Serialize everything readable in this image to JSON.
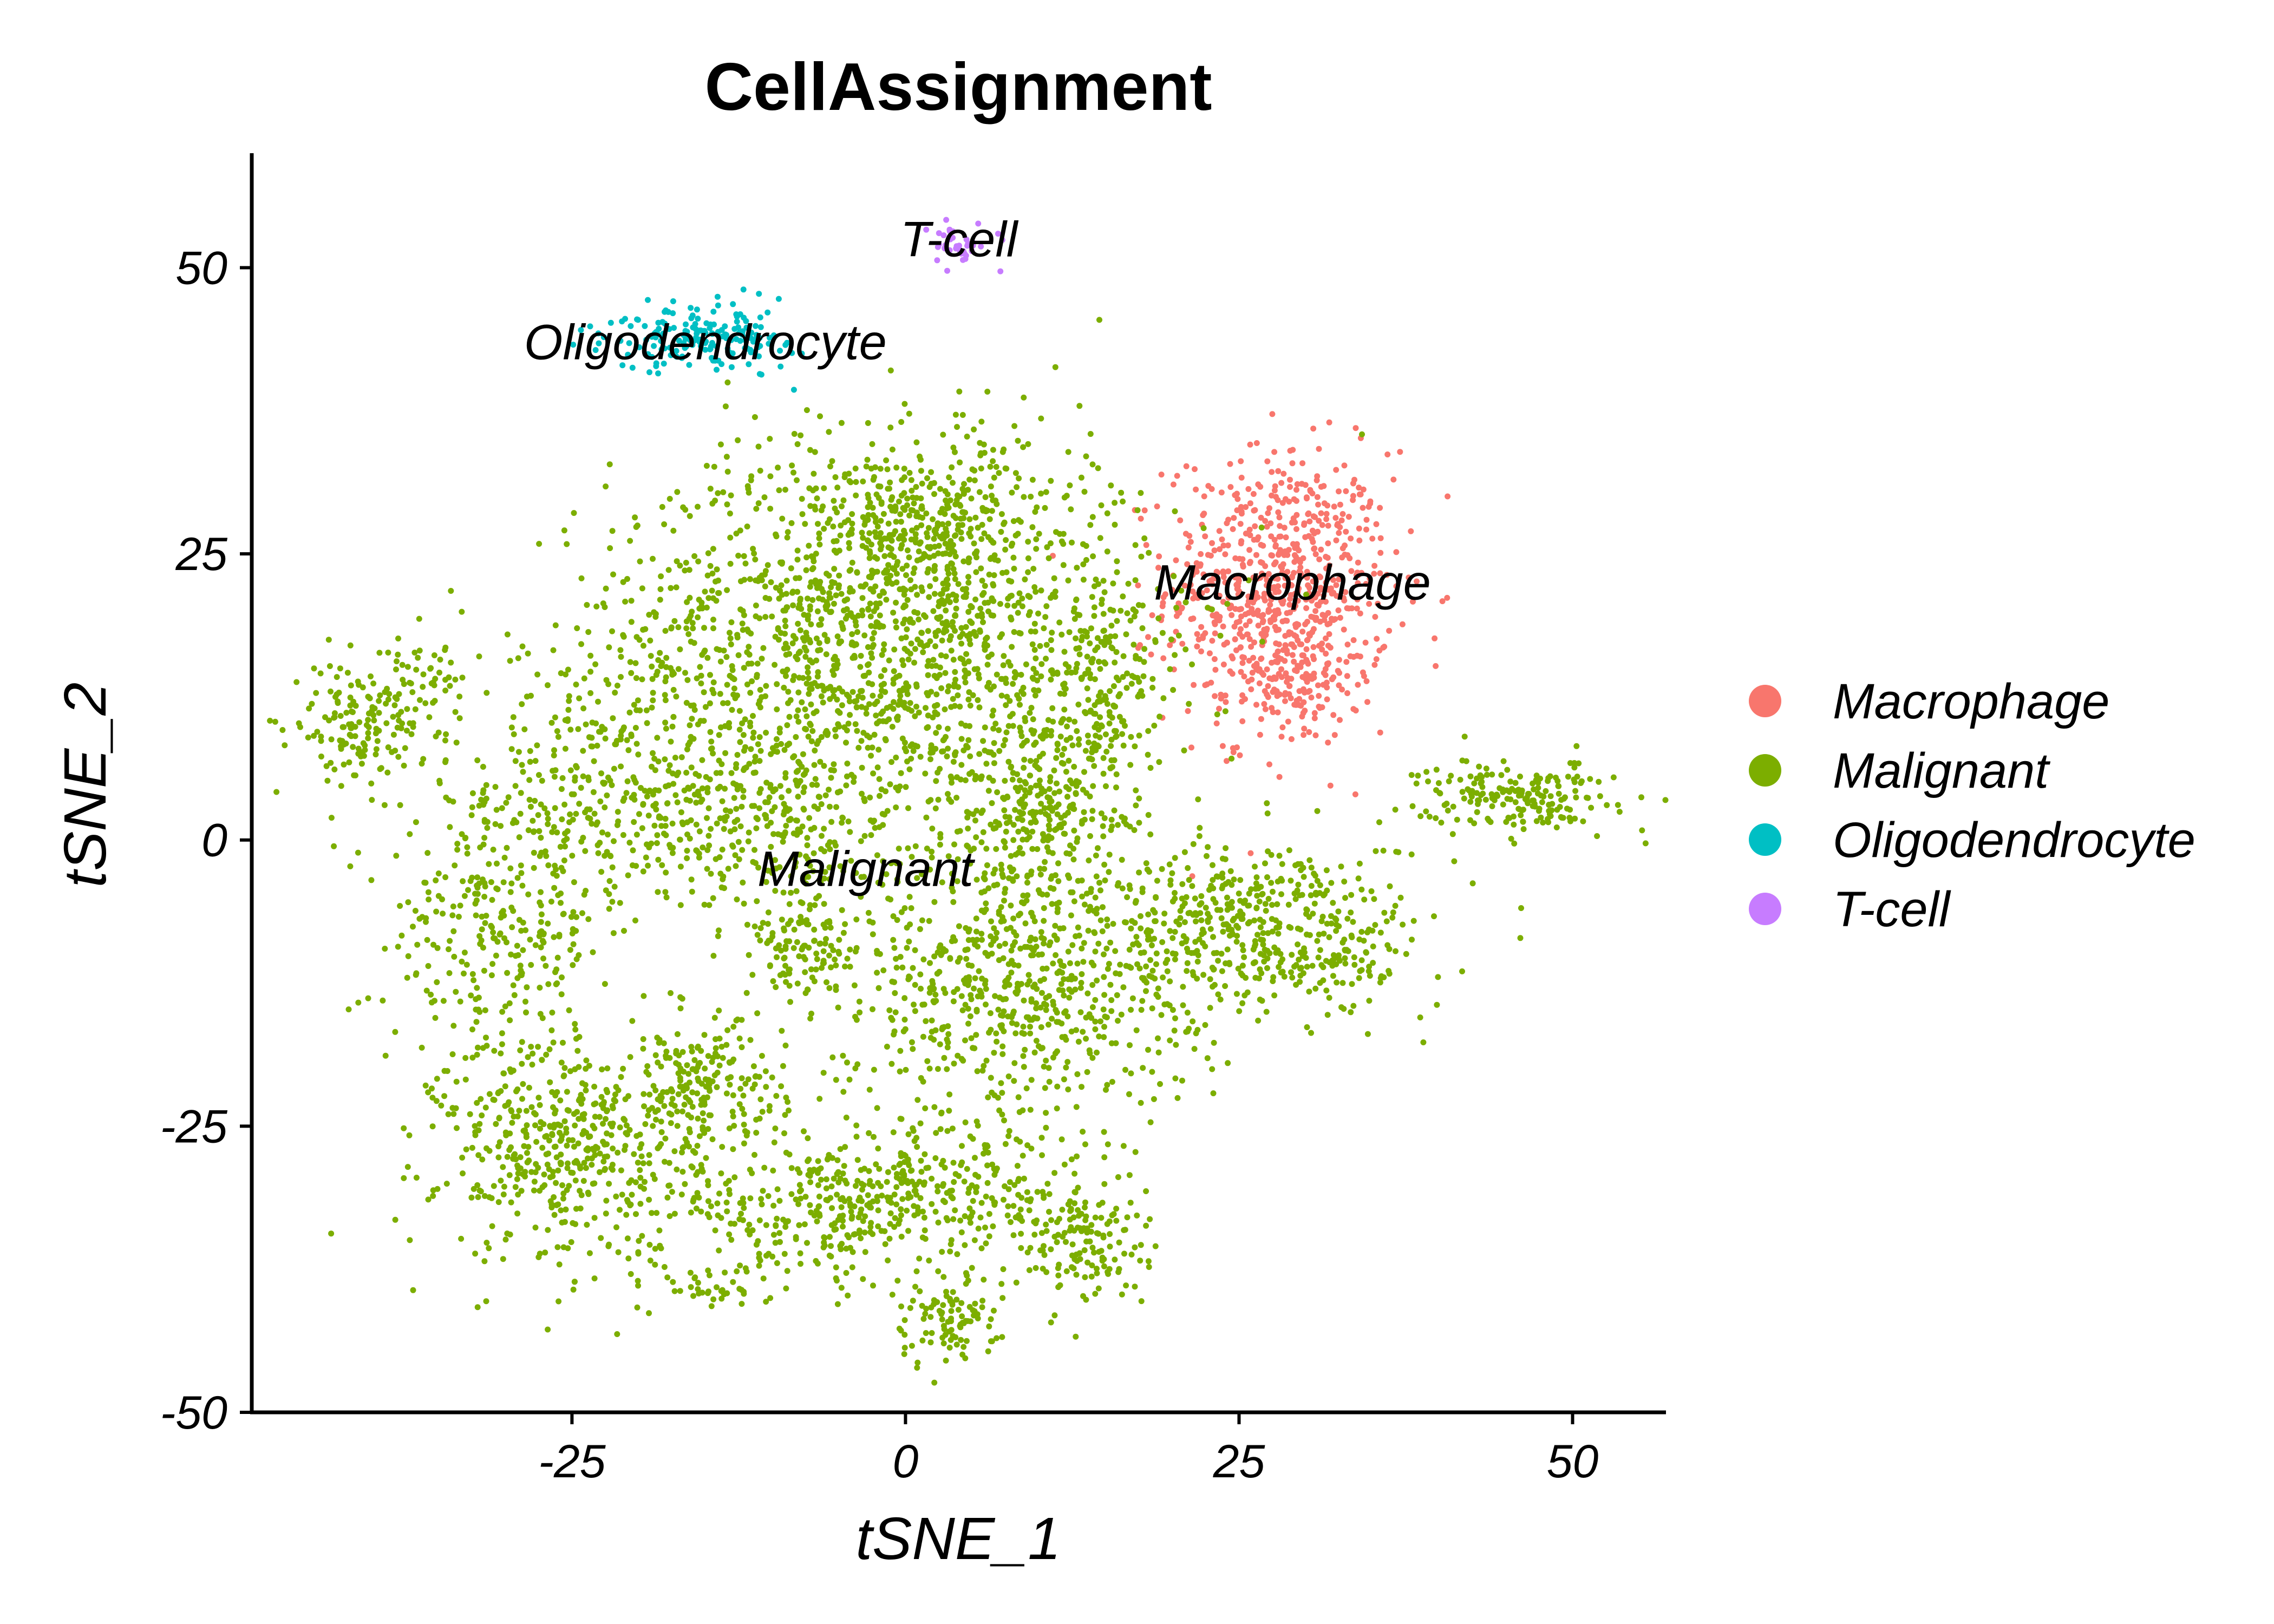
{
  "chart_data": {
    "type": "scatter",
    "title": "CellAssignment",
    "xlabel": "tSNE_1",
    "ylabel": "tSNE_2",
    "xlim": [
      -49,
      57
    ],
    "ylim": [
      -50,
      60
    ],
    "xticks": [
      -25,
      0,
      25,
      50
    ],
    "yticks": [
      -50,
      -25,
      0,
      25,
      50
    ],
    "xtick_labels": [
      "-25",
      "0",
      "25",
      "50"
    ],
    "ytick_labels": [
      "-50",
      "-25",
      "0",
      "25",
      "50"
    ],
    "grid": false,
    "legend_position": "right",
    "series": [
      {
        "name": "Macrophage",
        "color": "#F8766D",
        "label": "Macrophage",
        "label_at": [
          29,
          21
        ],
        "regions": [
          {
            "cx": 28,
            "cy": 22,
            "sx": 4.2,
            "sy": 6.0,
            "n": 700
          },
          {
            "cx": 29,
            "cy": 14,
            "sx": 2.5,
            "sy": 3.0,
            "n": 120
          }
        ]
      },
      {
        "name": "Malignant",
        "color": "#7CAE00",
        "label": "Malignant",
        "label_at": [
          -3,
          -4
        ],
        "regions": [
          {
            "cx": -2,
            "cy": 18,
            "sx": 10,
            "sy": 8,
            "n": 1500
          },
          {
            "cx": 2,
            "cy": 28,
            "sx": 6,
            "sy": 4,
            "n": 300
          },
          {
            "cx": -24,
            "cy": 5,
            "sx": 5,
            "sy": 6,
            "n": 200
          },
          {
            "cx": -31,
            "cy": -8,
            "sx": 4,
            "sy": 6,
            "n": 300
          },
          {
            "cx": -41,
            "cy": 10,
            "sx": 2.5,
            "sy": 2.5,
            "n": 150
          },
          {
            "cx": -36,
            "cy": 14,
            "sx": 1.5,
            "sy": 2,
            "n": 50
          },
          {
            "cx": -25,
            "cy": -27,
            "sx": 5,
            "sy": 5,
            "n": 500
          },
          {
            "cx": -15,
            "cy": -22,
            "sx": 3,
            "sy": 3,
            "n": 200
          },
          {
            "cx": -7,
            "cy": -33,
            "sx": 5,
            "sy": 3,
            "n": 200
          },
          {
            "cx": 2,
            "cy": -30,
            "sx": 6,
            "sy": 3,
            "n": 300
          },
          {
            "cx": 3,
            "cy": -42,
            "sx": 2,
            "sy": 2,
            "n": 100
          },
          {
            "cx": -14,
            "cy": -39,
            "sx": 3,
            "sy": 1,
            "n": 40
          },
          {
            "cx": 13,
            "cy": -35,
            "sx": 2.5,
            "sy": 3,
            "n": 150
          },
          {
            "cx": 8,
            "cy": -12,
            "sx": 7,
            "sy": 6,
            "n": 700
          },
          {
            "cx": 10,
            "cy": 3,
            "sx": 4,
            "sy": 4,
            "n": 300
          },
          {
            "cx": 27,
            "cy": -8,
            "sx": 6,
            "sy": 4,
            "n": 500
          },
          {
            "cx": 46,
            "cy": 4,
            "sx": 3.5,
            "sy": 1.5,
            "n": 200
          },
          {
            "cx": -8,
            "cy": -10,
            "sx": 2,
            "sy": 2,
            "n": 100
          },
          {
            "cx": 15,
            "cy": 14,
            "sx": 2,
            "sy": 4,
            "n": 150
          },
          {
            "cx": -12,
            "cy": 3,
            "sx": 6,
            "sy": 5,
            "n": 400
          }
        ]
      },
      {
        "name": "Oligodendrocyte",
        "color": "#00BFC4",
        "label": "Oligodendrocyte",
        "label_at": [
          -15,
          42
        ],
        "regions": [
          {
            "cx": -15,
            "cy": 44,
            "sx": 3.5,
            "sy": 1.5,
            "n": 180
          }
        ]
      },
      {
        "name": "T-cell",
        "color": "#C77CFF",
        "label": "T-cell",
        "label_at": [
          4,
          51
        ],
        "regions": [
          {
            "cx": 4,
            "cy": 52,
            "sx": 1.5,
            "sy": 1,
            "n": 40
          }
        ]
      }
    ]
  }
}
